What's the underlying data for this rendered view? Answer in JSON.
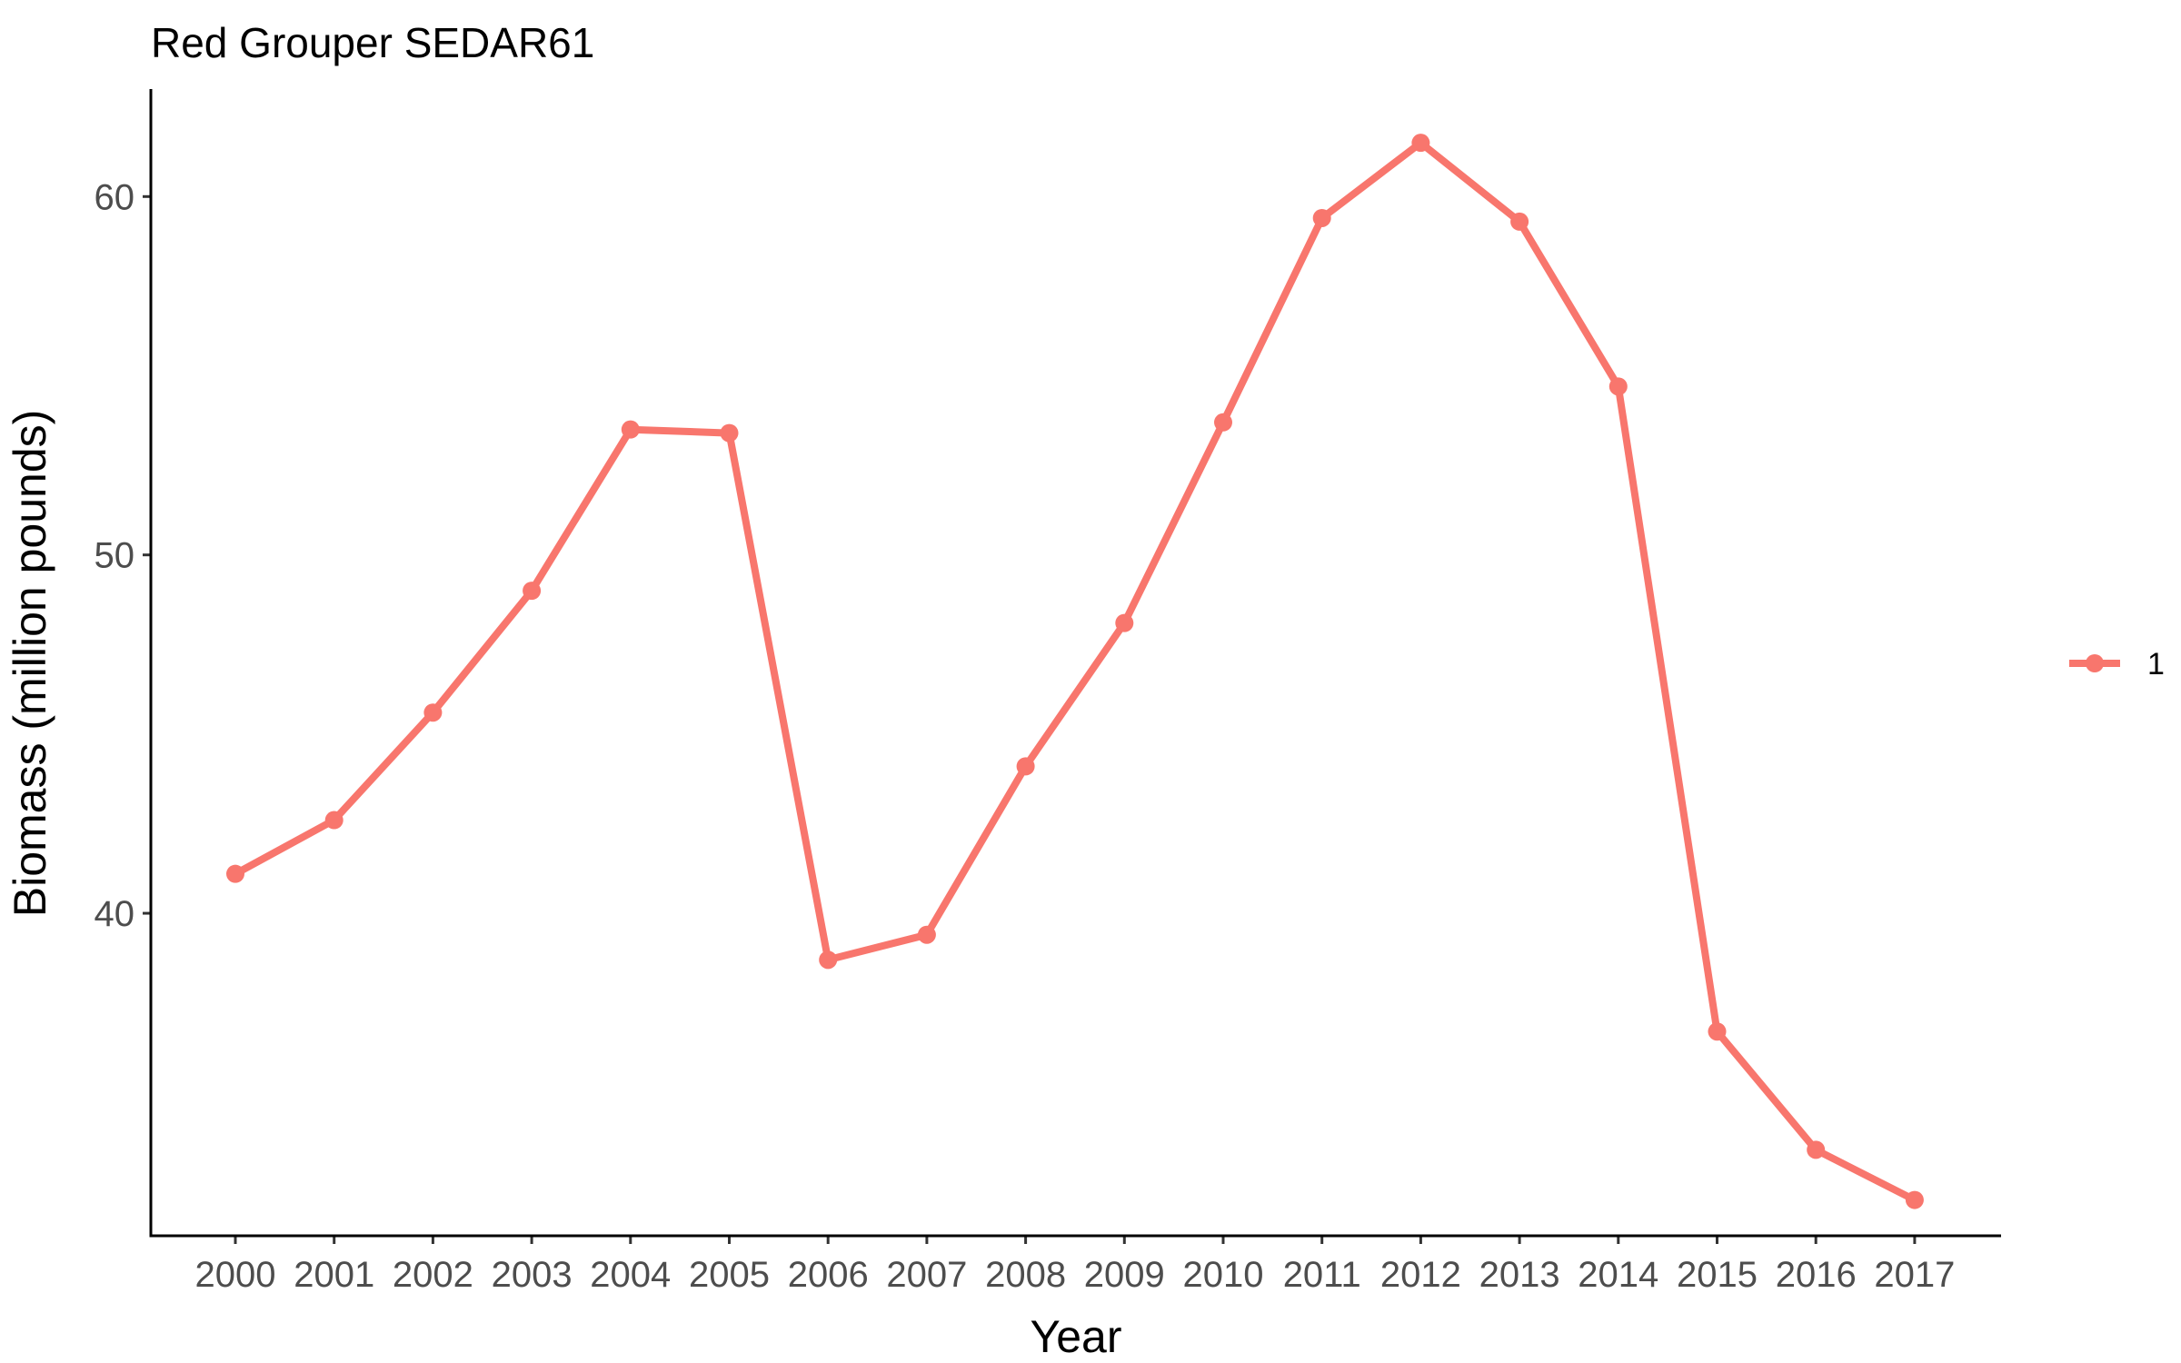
{
  "chart_data": {
    "type": "line",
    "title": "Red Grouper SEDAR61",
    "xlabel": "Year",
    "ylabel": "Biomass (million pounds)",
    "categories": [
      "2000",
      "2001",
      "2002",
      "2003",
      "2004",
      "2005",
      "2006",
      "2007",
      "2008",
      "2009",
      "2010",
      "2011",
      "2012",
      "2013",
      "2014",
      "2015",
      "2016",
      "2017"
    ],
    "series": [
      {
        "name": "1",
        "color": "#F8766D",
        "values": [
          41.1,
          42.6,
          45.6,
          49.0,
          53.5,
          53.4,
          38.7,
          39.4,
          44.1,
          48.1,
          53.7,
          59.4,
          61.5,
          59.3,
          54.7,
          36.7,
          33.4,
          32.0
        ]
      }
    ],
    "ylim": [
      31.0,
      63.0
    ],
    "yticks": [
      40,
      50,
      60
    ],
    "grid": false,
    "legend_position": "right"
  }
}
